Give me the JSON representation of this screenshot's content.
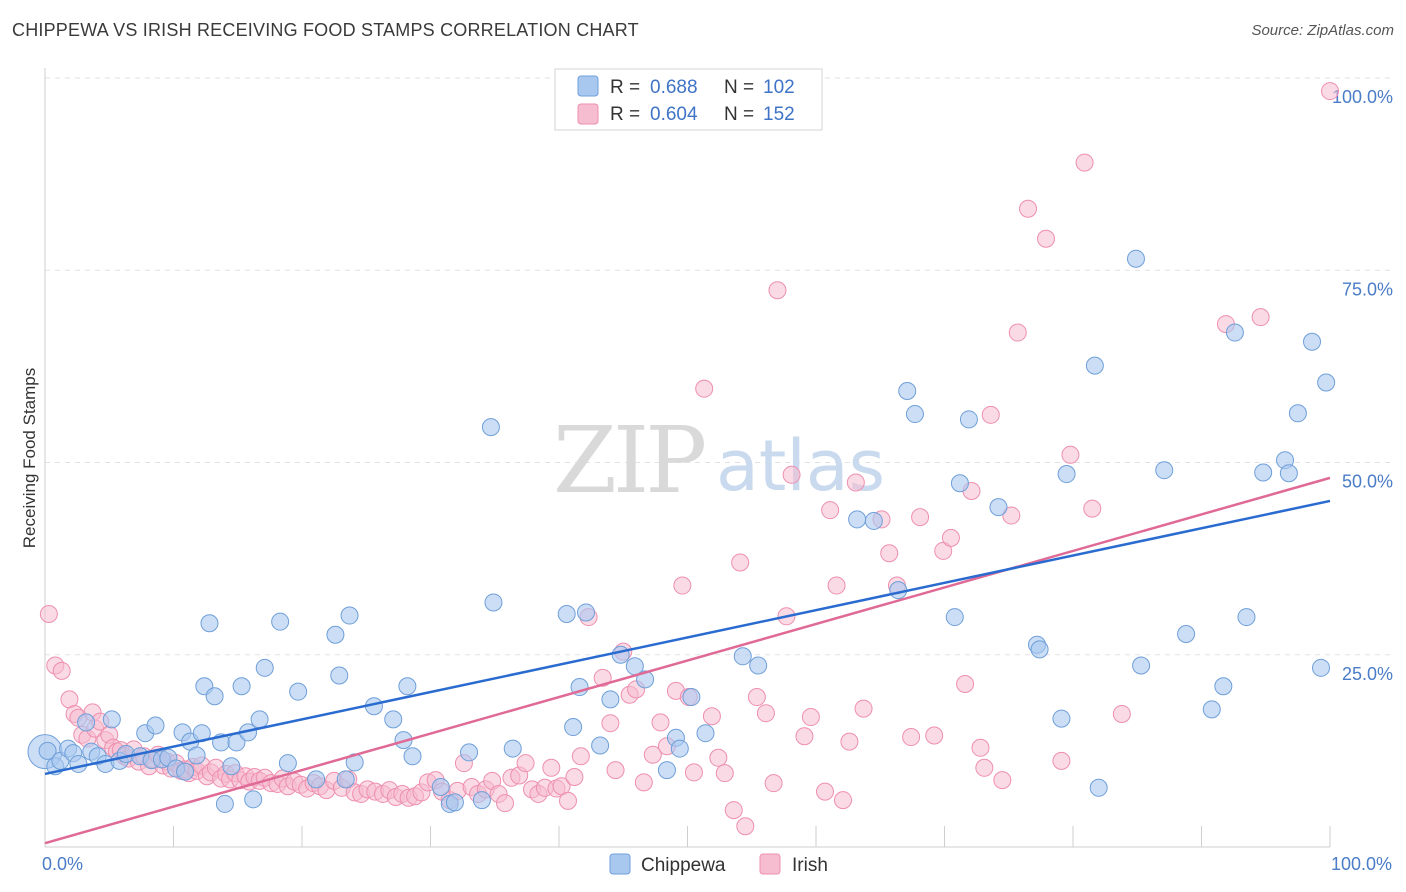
{
  "header": {
    "title": "CHIPPEWA VS IRISH RECEIVING FOOD STAMPS CORRELATION CHART",
    "source": "Source: ZipAtlas.com"
  },
  "watermark": {
    "zip": "ZIP",
    "atlas": "atlas"
  },
  "colors": {
    "chippewa_fill": "#a9c8f0",
    "chippewa_stroke": "#6f9fd8",
    "chippewa_line": "#2a6bd0",
    "irish_fill": "#f6bcd0",
    "irish_stroke": "#ee8fb0",
    "irish_line": "#e06a96",
    "tick_label": "#4a7cc7",
    "grid": "#e2e2e2"
  },
  "legend": {
    "rows": [
      {
        "r_label": "R =",
        "r_value": "0.688",
        "n_label": "N =",
        "n_value": "102"
      },
      {
        "r_label": "R =",
        "r_value": "0.604",
        "n_label": "N =",
        "n_value": "152"
      }
    ]
  },
  "bottom_legend": [
    "Chippewa",
    "Irish"
  ],
  "chart_data": {
    "type": "scatter",
    "title": "CHIPPEWA VS IRISH RECEIVING FOOD STAMPS CORRELATION CHART",
    "xlabel": "",
    "ylabel": "Receiving Food Stamps",
    "xlim": [
      0,
      100
    ],
    "ylim": [
      0,
      100
    ],
    "x_tick_labels": [
      "0.0%",
      "100.0%"
    ],
    "y_ticks": [
      25,
      50,
      75,
      100
    ],
    "y_tick_labels": [
      "25.0%",
      "50.0%",
      "75.0%",
      "100.0%"
    ],
    "grid": "horizontal dashed",
    "legend_position": "top-center",
    "series": [
      {
        "name": "Chippewa",
        "r": 0.688,
        "n": 102,
        "trend": [
          [
            0,
            9.5
          ],
          [
            100,
            45.0
          ]
        ],
        "points": [
          [
            0.2,
            12.5
          ],
          [
            0.8,
            10.5
          ],
          [
            1.2,
            11.2
          ],
          [
            1.8,
            12.8
          ],
          [
            2.2,
            12.2
          ],
          [
            2.6,
            10.8
          ],
          [
            3.2,
            16.2
          ],
          [
            3.6,
            12.4
          ],
          [
            4.1,
            11.8
          ],
          [
            4.7,
            10.8
          ],
          [
            5.2,
            16.6
          ],
          [
            5.8,
            11.2
          ],
          [
            6.3,
            12.1
          ],
          [
            7.4,
            11.8
          ],
          [
            7.8,
            14.8
          ],
          [
            8.3,
            11.3
          ],
          [
            8.6,
            15.8
          ],
          [
            9.1,
            11.4
          ],
          [
            9.6,
            11.6
          ],
          [
            10.2,
            10.2
          ],
          [
            10.7,
            14.9
          ],
          [
            10.9,
            9.8
          ],
          [
            11.3,
            13.7
          ],
          [
            11.8,
            11.9
          ],
          [
            12.2,
            14.8
          ],
          [
            12.4,
            20.9
          ],
          [
            12.8,
            29.1
          ],
          [
            13.2,
            19.6
          ],
          [
            13.7,
            13.6
          ],
          [
            14.0,
            5.6
          ],
          [
            14.5,
            10.5
          ],
          [
            14.9,
            13.6
          ],
          [
            15.3,
            20.9
          ],
          [
            15.8,
            14.9
          ],
          [
            16.2,
            6.2
          ],
          [
            16.7,
            16.6
          ],
          [
            17.1,
            23.3
          ],
          [
            18.3,
            29.3
          ],
          [
            18.9,
            10.9
          ],
          [
            19.7,
            20.2
          ],
          [
            21.1,
            8.8
          ],
          [
            22.6,
            27.6
          ],
          [
            22.9,
            22.3
          ],
          [
            23.4,
            8.8
          ],
          [
            23.7,
            30.1
          ],
          [
            24.1,
            11.0
          ],
          [
            25.6,
            18.3
          ],
          [
            27.1,
            16.6
          ],
          [
            27.9,
            13.9
          ],
          [
            28.2,
            20.9
          ],
          [
            28.6,
            11.8
          ],
          [
            30.8,
            7.8
          ],
          [
            31.5,
            5.6
          ],
          [
            31.9,
            5.8
          ],
          [
            33.0,
            12.3
          ],
          [
            34.0,
            6.1
          ],
          [
            34.7,
            54.6
          ],
          [
            34.9,
            31.8
          ],
          [
            36.4,
            12.8
          ],
          [
            40.6,
            30.3
          ],
          [
            41.1,
            15.6
          ],
          [
            41.6,
            20.8
          ],
          [
            42.1,
            30.5
          ],
          [
            43.2,
            13.2
          ],
          [
            44.0,
            19.2
          ],
          [
            44.8,
            25.0
          ],
          [
            45.9,
            23.5
          ],
          [
            46.7,
            21.8
          ],
          [
            48.4,
            10.0
          ],
          [
            49.1,
            14.2
          ],
          [
            49.4,
            12.8
          ],
          [
            50.3,
            19.5
          ],
          [
            51.4,
            14.8
          ],
          [
            54.3,
            24.8
          ],
          [
            55.5,
            23.6
          ],
          [
            63.2,
            42.6
          ],
          [
            64.5,
            42.4
          ],
          [
            66.4,
            33.4
          ],
          [
            67.1,
            59.3
          ],
          [
            67.7,
            56.3
          ],
          [
            70.8,
            29.9
          ],
          [
            71.2,
            47.3
          ],
          [
            71.9,
            55.6
          ],
          [
            74.2,
            44.2
          ],
          [
            77.2,
            26.3
          ],
          [
            77.4,
            25.7
          ],
          [
            79.1,
            16.7
          ],
          [
            79.5,
            48.5
          ],
          [
            81.7,
            62.6
          ],
          [
            82.0,
            7.7
          ],
          [
            84.9,
            76.5
          ],
          [
            85.3,
            23.6
          ],
          [
            87.1,
            49.0
          ],
          [
            88.8,
            27.7
          ],
          [
            90.8,
            17.9
          ],
          [
            91.7,
            20.9
          ],
          [
            92.6,
            66.9
          ],
          [
            93.5,
            29.9
          ],
          [
            94.8,
            48.7
          ],
          [
            96.5,
            50.3
          ],
          [
            96.8,
            48.6
          ],
          [
            97.5,
            56.4
          ],
          [
            98.6,
            65.7
          ],
          [
            99.3,
            23.3
          ],
          [
            99.7,
            60.4
          ]
        ]
      },
      {
        "name": "Irish",
        "r": 0.604,
        "n": 152,
        "trend": [
          [
            0,
            0.5
          ],
          [
            100,
            48.0
          ]
        ],
        "points": [
          [
            0.3,
            30.3
          ],
          [
            0.8,
            23.6
          ],
          [
            1.3,
            22.9
          ],
          [
            1.9,
            19.2
          ],
          [
            2.3,
            17.3
          ],
          [
            2.6,
            16.8
          ],
          [
            2.9,
            14.6
          ],
          [
            3.3,
            14.1
          ],
          [
            3.7,
            17.5
          ],
          [
            3.9,
            15.4
          ],
          [
            4.3,
            16.3
          ],
          [
            4.7,
            13.9
          ],
          [
            5.0,
            14.6
          ],
          [
            5.3,
            12.9
          ],
          [
            5.6,
            12.4
          ],
          [
            5.9,
            12.6
          ],
          [
            6.2,
            11.8
          ],
          [
            6.5,
            11.5
          ],
          [
            6.9,
            12.7
          ],
          [
            7.3,
            11.1
          ],
          [
            7.7,
            11.8
          ],
          [
            8.1,
            10.5
          ],
          [
            8.4,
            11.4
          ],
          [
            8.8,
            12.0
          ],
          [
            9.2,
            10.6
          ],
          [
            9.5,
            11.1
          ],
          [
            9.8,
            10.2
          ],
          [
            10.2,
            10.9
          ],
          [
            10.6,
            9.9
          ],
          [
            10.9,
            10.1
          ],
          [
            11.2,
            9.6
          ],
          [
            11.5,
            10.4
          ],
          [
            11.8,
            9.9
          ],
          [
            12.2,
            10.6
          ],
          [
            12.6,
            9.2
          ],
          [
            12.9,
            9.7
          ],
          [
            13.3,
            10.3
          ],
          [
            13.7,
            8.9
          ],
          [
            14.1,
            9.5
          ],
          [
            14.4,
            8.8
          ],
          [
            14.8,
            9.6
          ],
          [
            15.2,
            8.7
          ],
          [
            15.6,
            9.2
          ],
          [
            15.9,
            8.5
          ],
          [
            16.3,
            9.1
          ],
          [
            16.7,
            8.6
          ],
          [
            17.1,
            9.0
          ],
          [
            17.6,
            8.3
          ],
          [
            18.1,
            8.2
          ],
          [
            18.5,
            8.9
          ],
          [
            18.9,
            7.9
          ],
          [
            19.4,
            8.5
          ],
          [
            19.9,
            8.1
          ],
          [
            20.4,
            7.6
          ],
          [
            20.9,
            8.3
          ],
          [
            21.4,
            7.9
          ],
          [
            21.9,
            7.4
          ],
          [
            22.5,
            8.6
          ],
          [
            23.1,
            7.7
          ],
          [
            23.6,
            8.8
          ],
          [
            24.1,
            7.1
          ],
          [
            24.6,
            6.9
          ],
          [
            25.1,
            7.5
          ],
          [
            25.7,
            7.2
          ],
          [
            26.3,
            6.9
          ],
          [
            26.8,
            7.4
          ],
          [
            27.3,
            6.5
          ],
          [
            27.8,
            6.9
          ],
          [
            28.3,
            6.4
          ],
          [
            28.8,
            6.6
          ],
          [
            29.3,
            7.1
          ],
          [
            29.8,
            8.4
          ],
          [
            30.4,
            8.7
          ],
          [
            30.9,
            7.2
          ],
          [
            31.5,
            6.1
          ],
          [
            32.1,
            7.3
          ],
          [
            32.6,
            10.9
          ],
          [
            33.2,
            7.8
          ],
          [
            33.7,
            6.9
          ],
          [
            34.3,
            7.5
          ],
          [
            34.8,
            8.6
          ],
          [
            35.3,
            6.9
          ],
          [
            35.8,
            5.7
          ],
          [
            36.3,
            9.0
          ],
          [
            36.9,
            9.3
          ],
          [
            37.4,
            10.9
          ],
          [
            37.9,
            7.5
          ],
          [
            38.4,
            6.9
          ],
          [
            38.9,
            7.7
          ],
          [
            39.4,
            10.3
          ],
          [
            39.8,
            7.6
          ],
          [
            40.2,
            7.9
          ],
          [
            40.7,
            6.0
          ],
          [
            41.2,
            9.1
          ],
          [
            41.7,
            11.8
          ],
          [
            42.3,
            29.9
          ],
          [
            43.4,
            22.0
          ],
          [
            44.0,
            16.1
          ],
          [
            44.4,
            10.0
          ],
          [
            45.0,
            25.4
          ],
          [
            45.5,
            19.8
          ],
          [
            46.0,
            20.5
          ],
          [
            46.6,
            8.4
          ],
          [
            47.3,
            12.0
          ],
          [
            47.9,
            16.2
          ],
          [
            48.4,
            13.1
          ],
          [
            49.1,
            20.3
          ],
          [
            49.6,
            34.0
          ],
          [
            50.1,
            19.5
          ],
          [
            50.5,
            9.7
          ],
          [
            51.3,
            59.6
          ],
          [
            51.9,
            17.0
          ],
          [
            52.4,
            11.6
          ],
          [
            52.9,
            9.6
          ],
          [
            53.6,
            4.8
          ],
          [
            54.1,
            37.0
          ],
          [
            54.5,
            2.7
          ],
          [
            55.4,
            19.5
          ],
          [
            56.1,
            17.4
          ],
          [
            56.7,
            8.3
          ],
          [
            57.0,
            72.4
          ],
          [
            57.7,
            30.0
          ],
          [
            58.1,
            48.4
          ],
          [
            59.1,
            14.4
          ],
          [
            59.6,
            16.9
          ],
          [
            60.7,
            7.2
          ],
          [
            61.1,
            43.8
          ],
          [
            61.6,
            34.0
          ],
          [
            62.1,
            6.1
          ],
          [
            62.6,
            13.7
          ],
          [
            63.1,
            47.4
          ],
          [
            63.7,
            18.0
          ],
          [
            65.1,
            42.6
          ],
          [
            65.7,
            38.2
          ],
          [
            66.3,
            34.0
          ],
          [
            67.4,
            14.3
          ],
          [
            68.1,
            42.9
          ],
          [
            69.2,
            14.5
          ],
          [
            69.9,
            38.5
          ],
          [
            70.5,
            40.2
          ],
          [
            71.6,
            21.2
          ],
          [
            72.1,
            46.3
          ],
          [
            72.8,
            12.9
          ],
          [
            73.1,
            10.3
          ],
          [
            73.6,
            56.2
          ],
          [
            74.5,
            8.7
          ],
          [
            75.2,
            43.1
          ],
          [
            75.7,
            66.9
          ],
          [
            76.5,
            83.0
          ],
          [
            77.9,
            79.1
          ],
          [
            79.1,
            11.2
          ],
          [
            79.8,
            51.0
          ],
          [
            80.9,
            89.0
          ],
          [
            81.5,
            44.0
          ],
          [
            83.8,
            17.3
          ],
          [
            91.9,
            68.0
          ],
          [
            94.6,
            68.9
          ],
          [
            100.0,
            98.3
          ]
        ]
      }
    ]
  }
}
